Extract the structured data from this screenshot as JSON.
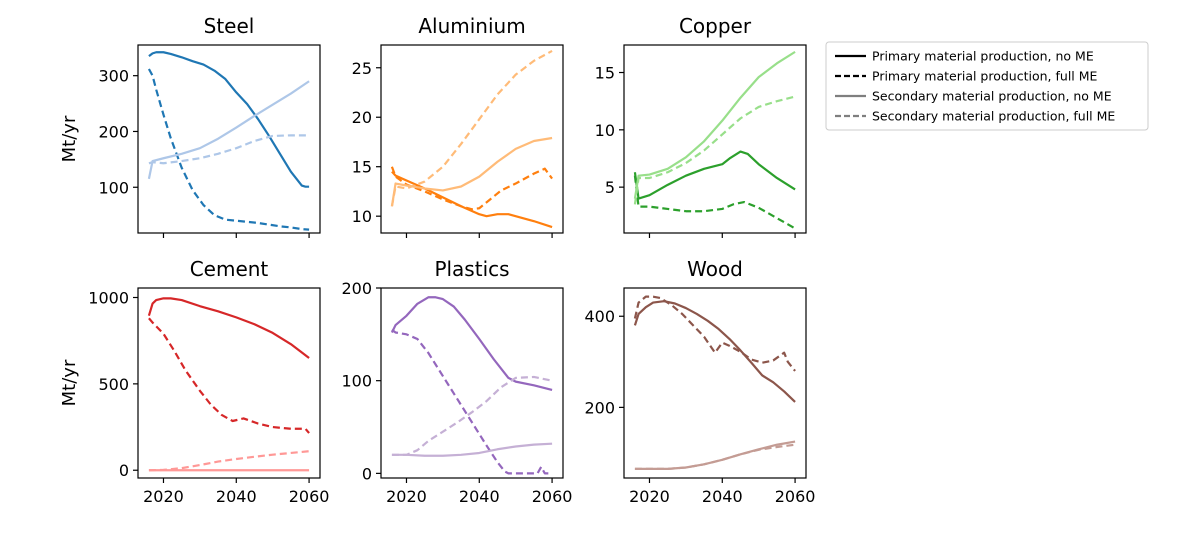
{
  "legend": {
    "entries": [
      {
        "label": "Primary material production, no ME",
        "dash": "solid",
        "color": "#000000"
      },
      {
        "label": "Primary material production, full ME",
        "dash": "dashed",
        "color": "#000000"
      },
      {
        "label": "Secondary material production, no ME",
        "dash": "solid",
        "color": "#7f7f7f"
      },
      {
        "label": "Secondary material production, full ME",
        "dash": "dashed",
        "color": "#7f7f7f"
      }
    ]
  },
  "chart_data": [
    {
      "type": "line",
      "title": "Steel",
      "xlabel": "",
      "ylabel": "Mt/yr",
      "xlim": [
        2013,
        2063
      ],
      "ylim": [
        18,
        355
      ],
      "xticks": [
        2020,
        2040,
        2060
      ],
      "xticklabels": [
        "",
        "",
        ""
      ],
      "yticks": [
        100,
        200,
        300
      ],
      "yticklabels": [
        "100",
        "200",
        "300"
      ],
      "series": [
        {
          "label": "Primary material production, no ME",
          "color": "#1f77b4",
          "dash": "solid",
          "x": [
            2016,
            2017,
            2018,
            2020,
            2022,
            2025,
            2028,
            2031,
            2034,
            2037,
            2040,
            2043,
            2046,
            2049,
            2052,
            2055,
            2058,
            2059,
            2060
          ],
          "y": [
            335,
            340,
            342,
            342,
            339,
            333,
            326,
            320,
            309,
            294,
            270,
            249,
            222,
            192,
            160,
            128,
            103,
            101,
            101
          ]
        },
        {
          "label": "Primary material production, full ME",
          "color": "#1f77b4",
          "dash": "dashed",
          "x": [
            2016,
            2017,
            2018,
            2020,
            2022,
            2025,
            2028,
            2031,
            2034,
            2037,
            2040,
            2043,
            2046,
            2049,
            2052,
            2055,
            2058,
            2060
          ],
          "y": [
            312,
            300,
            275,
            230,
            188,
            135,
            95,
            68,
            50,
            42,
            40,
            38,
            36,
            33,
            30,
            28,
            25,
            24
          ]
        },
        {
          "label": "Secondary material production, no ME",
          "color": "#aec7e8",
          "dash": "solid",
          "x": [
            2016,
            2017,
            2020,
            2025,
            2030,
            2035,
            2040,
            2045,
            2050,
            2055,
            2060
          ],
          "y": [
            115,
            147,
            152,
            160,
            170,
            187,
            207,
            228,
            248,
            268,
            290
          ]
        },
        {
          "label": "Secondary material production, full ME",
          "color": "#aec7e8",
          "dash": "dashed",
          "x": [
            2016,
            2017,
            2020,
            2025,
            2030,
            2035,
            2040,
            2045,
            2050,
            2055,
            2060
          ],
          "y": [
            143,
            145,
            143,
            147,
            152,
            160,
            170,
            183,
            192,
            193,
            193
          ]
        }
      ]
    },
    {
      "type": "line",
      "title": "Aluminium",
      "xlabel": "",
      "ylabel": "",
      "xlim": [
        2013,
        2063
      ],
      "ylim": [
        8.3,
        27.3
      ],
      "xticks": [
        2020,
        2040,
        2060
      ],
      "xticklabels": [
        "",
        "",
        ""
      ],
      "yticks": [
        10,
        15,
        20,
        25
      ],
      "yticklabels": [
        "10",
        "15",
        "20",
        "25"
      ],
      "series": [
        {
          "label": "Primary material production, no ME",
          "color": "#ff7f0e",
          "dash": "solid",
          "x": [
            2016,
            2017,
            2020,
            2025,
            2030,
            2035,
            2040,
            2042,
            2045,
            2048,
            2050,
            2055,
            2060
          ],
          "y": [
            14.5,
            14.1,
            13.6,
            12.8,
            11.9,
            11.0,
            10.2,
            10.0,
            10.2,
            10.2,
            10.0,
            9.5,
            8.9
          ]
        },
        {
          "label": "Primary material production, full ME",
          "color": "#ff7f0e",
          "dash": "dashed",
          "x": [
            2016,
            2017,
            2020,
            2025,
            2030,
            2035,
            2038,
            2040,
            2043,
            2046,
            2050,
            2055,
            2058,
            2060
          ],
          "y": [
            15.0,
            14.0,
            13.2,
            12.5,
            11.7,
            11.0,
            10.7,
            10.8,
            11.7,
            12.6,
            13.3,
            14.3,
            14.8,
            13.8
          ]
        },
        {
          "label": "Secondary material production, no ME",
          "color": "#ffbb78",
          "dash": "solid",
          "x": [
            2016,
            2017,
            2020,
            2025,
            2030,
            2035,
            2040,
            2045,
            2050,
            2055,
            2060
          ],
          "y": [
            11.0,
            13.3,
            13.1,
            12.8,
            12.6,
            13.0,
            14.0,
            15.5,
            16.8,
            17.6,
            17.9
          ]
        },
        {
          "label": "Secondary material production, full ME",
          "color": "#ffbb78",
          "dash": "dashed",
          "x": [
            2016,
            2017,
            2020,
            2025,
            2030,
            2035,
            2040,
            2045,
            2050,
            2055,
            2060
          ],
          "y": [
            11.0,
            13.0,
            12.8,
            13.5,
            15.0,
            17.3,
            19.8,
            22.3,
            24.3,
            25.7,
            26.7
          ]
        }
      ]
    },
    {
      "type": "line",
      "title": "Copper",
      "xlabel": "",
      "ylabel": "",
      "xlim": [
        2013,
        2063
      ],
      "ylim": [
        1.0,
        17.4
      ],
      "xticks": [
        2020,
        2040,
        2060
      ],
      "xticklabels": [
        "",
        "",
        ""
      ],
      "yticks": [
        5,
        10,
        15
      ],
      "yticklabels": [
        "5",
        "10",
        "15"
      ],
      "series": [
        {
          "label": "Primary material production, no ME",
          "color": "#2ca02c",
          "dash": "solid",
          "x": [
            2016,
            2017,
            2020,
            2025,
            2030,
            2035,
            2040,
            2042,
            2045,
            2047,
            2050,
            2055,
            2060
          ],
          "y": [
            6.3,
            4.0,
            4.3,
            5.2,
            6.0,
            6.6,
            7.0,
            7.5,
            8.1,
            7.9,
            7.0,
            5.8,
            4.8
          ]
        },
        {
          "label": "Primary material production, full ME",
          "color": "#2ca02c",
          "dash": "dashed",
          "x": [
            2016,
            2017,
            2020,
            2025,
            2030,
            2035,
            2040,
            2043,
            2046,
            2050,
            2055,
            2060
          ],
          "y": [
            6.0,
            3.3,
            3.3,
            3.1,
            2.9,
            2.9,
            3.1,
            3.5,
            3.7,
            3.2,
            2.3,
            1.4
          ]
        },
        {
          "label": "Secondary material production, no ME",
          "color": "#98df8a",
          "dash": "solid",
          "x": [
            2016,
            2017,
            2020,
            2025,
            2030,
            2035,
            2040,
            2045,
            2050,
            2055,
            2060
          ],
          "y": [
            4.0,
            6.0,
            6.1,
            6.6,
            7.6,
            9.0,
            10.8,
            12.8,
            14.6,
            15.8,
            16.8
          ]
        },
        {
          "label": "Secondary material production, full ME",
          "color": "#98df8a",
          "dash": "dashed",
          "x": [
            2016,
            2017,
            2020,
            2025,
            2030,
            2035,
            2040,
            2045,
            2050,
            2055,
            2060
          ],
          "y": [
            3.5,
            5.8,
            5.8,
            6.3,
            7.1,
            8.2,
            9.6,
            11.0,
            12.0,
            12.5,
            12.9
          ]
        }
      ]
    },
    {
      "type": "line",
      "title": "Cement",
      "xlabel": "",
      "ylabel": "Mt/yr",
      "xlim": [
        2013,
        2063
      ],
      "ylim": [
        -45,
        1055
      ],
      "xticks": [
        2020,
        2040,
        2060
      ],
      "xticklabels": [
        "2020",
        "2040",
        "2060"
      ],
      "yticks": [
        0,
        500,
        1000
      ],
      "yticklabels": [
        "0",
        "500",
        "1000"
      ],
      "series": [
        {
          "label": "Primary material production, no ME",
          "color": "#d62728",
          "dash": "solid",
          "x": [
            2016,
            2017,
            2018,
            2020,
            2022,
            2025,
            2030,
            2035,
            2040,
            2045,
            2050,
            2055,
            2060
          ],
          "y": [
            895,
            965,
            985,
            995,
            995,
            985,
            950,
            920,
            885,
            845,
            795,
            730,
            650
          ]
        },
        {
          "label": "Primary material production, full ME",
          "color": "#d62728",
          "dash": "dashed",
          "x": [
            2016,
            2017,
            2020,
            2023,
            2026,
            2030,
            2033,
            2036,
            2039,
            2042,
            2046,
            2050,
            2055,
            2059,
            2060
          ],
          "y": [
            880,
            855,
            790,
            690,
            580,
            460,
            380,
            320,
            285,
            300,
            270,
            250,
            240,
            240,
            215
          ]
        },
        {
          "label": "Secondary material production, no ME",
          "color": "#ff9896",
          "dash": "solid",
          "x": [
            2016,
            2020,
            2030,
            2040,
            2050,
            2060
          ],
          "y": [
            0,
            0,
            0,
            0,
            0,
            0
          ]
        },
        {
          "label": "Secondary material production, full ME",
          "color": "#ff9896",
          "dash": "dashed",
          "x": [
            2016,
            2020,
            2025,
            2030,
            2035,
            2040,
            2045,
            2050,
            2055,
            2060
          ],
          "y": [
            0,
            2,
            12,
            30,
            50,
            65,
            78,
            90,
            100,
            110
          ]
        }
      ]
    },
    {
      "type": "line",
      "title": "Plastics",
      "xlabel": "",
      "ylabel": "",
      "xlim": [
        2013,
        2063
      ],
      "ylim": [
        -5,
        200
      ],
      "xticks": [
        2020,
        2040,
        2060
      ],
      "xticklabels": [
        "2020",
        "2040",
        "2060"
      ],
      "yticks": [
        0,
        100,
        200
      ],
      "yticklabels": [
        "0",
        "100",
        "200"
      ],
      "series": [
        {
          "label": "Primary material production, no ME",
          "color": "#9467bd",
          "dash": "solid",
          "x": [
            2016,
            2017,
            2020,
            2023,
            2026,
            2028,
            2030,
            2033,
            2036,
            2040,
            2044,
            2048,
            2050,
            2055,
            2060
          ],
          "y": [
            152,
            160,
            170,
            183,
            190,
            190,
            188,
            180,
            166,
            145,
            123,
            103,
            99,
            95,
            90
          ]
        },
        {
          "label": "Primary material production, full ME",
          "color": "#9467bd",
          "dash": "dashed",
          "x": [
            2016,
            2017,
            2020,
            2023,
            2026,
            2030,
            2034,
            2038,
            2042,
            2045,
            2047,
            2048,
            2050,
            2055,
            2056,
            2057,
            2058,
            2060
          ],
          "y": [
            155,
            152,
            150,
            145,
            130,
            105,
            80,
            55,
            30,
            12,
            2,
            0,
            0,
            0,
            0,
            7,
            0,
            0
          ]
        },
        {
          "label": "Secondary material production, no ME",
          "color": "#c5b0d5",
          "dash": "solid",
          "x": [
            2016,
            2020,
            2025,
            2030,
            2035,
            2040,
            2045,
            2050,
            2055,
            2060
          ],
          "y": [
            20,
            20,
            19,
            19,
            20,
            22,
            26,
            29,
            31,
            32
          ]
        },
        {
          "label": "Secondary material production, full ME",
          "color": "#c5b0d5",
          "dash": "dashed",
          "x": [
            2016,
            2020,
            2023,
            2026,
            2030,
            2034,
            2038,
            2042,
            2046,
            2050,
            2055,
            2060
          ],
          "y": [
            20,
            20,
            25,
            35,
            45,
            55,
            66,
            78,
            93,
            103,
            104,
            100
          ]
        }
      ]
    },
    {
      "type": "line",
      "title": "Wood",
      "xlabel": "",
      "ylabel": "",
      "xlim": [
        2013,
        2063
      ],
      "ylim": [
        45,
        462
      ],
      "xticks": [
        2020,
        2040,
        2060
      ],
      "xticklabels": [
        "2020",
        "2040",
        "2060"
      ],
      "yticks": [
        200,
        400
      ],
      "yticklabels": [
        "200",
        "400"
      ],
      "series": [
        {
          "label": "Primary material production, no ME",
          "color": "#8c564b",
          "dash": "solid",
          "x": [
            2016,
            2017,
            2019,
            2021,
            2024,
            2027,
            2030,
            2033,
            2036,
            2039,
            2042,
            2045,
            2048,
            2051,
            2054,
            2057,
            2060
          ],
          "y": [
            380,
            405,
            420,
            430,
            433,
            428,
            418,
            405,
            390,
            372,
            350,
            325,
            298,
            270,
            255,
            235,
            212
          ]
        },
        {
          "label": "Primary material production, full ME",
          "color": "#8c564b",
          "dash": "dashed",
          "x": [
            2016,
            2017,
            2019,
            2021,
            2023,
            2026,
            2029,
            2032,
            2035,
            2038,
            2040,
            2042,
            2045,
            2048,
            2051,
            2054,
            2057,
            2058,
            2060
          ],
          "y": [
            395,
            430,
            443,
            443,
            440,
            425,
            405,
            380,
            355,
            320,
            342,
            335,
            322,
            305,
            298,
            303,
            320,
            300,
            280
          ]
        },
        {
          "label": "Secondary material production, no ME",
          "color": "#c49c94",
          "dash": "solid",
          "x": [
            2016,
            2020,
            2025,
            2030,
            2035,
            2040,
            2045,
            2050,
            2055,
            2060
          ],
          "y": [
            65,
            65,
            65,
            68,
            75,
            85,
            97,
            108,
            118,
            125
          ]
        },
        {
          "label": "Secondary material production, full ME",
          "color": "#c49c94",
          "dash": "dashed",
          "x": [
            2016,
            2020,
            2025,
            2030,
            2035,
            2040,
            2045,
            2050,
            2055,
            2060
          ],
          "y": [
            65,
            65,
            65,
            68,
            75,
            85,
            97,
            107,
            113,
            118
          ]
        }
      ]
    }
  ]
}
